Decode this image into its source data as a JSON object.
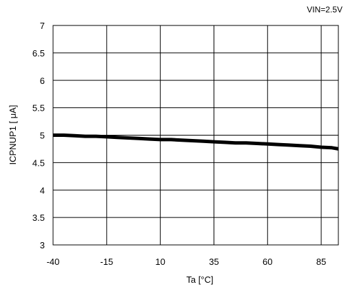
{
  "chart_data": {
    "type": "line",
    "annotation": "VIN=2.5V",
    "xlabel": "Ta [°C]",
    "ylabel": "ICPNUP1 [  μA]",
    "xlim": [
      -40,
      93
    ],
    "ylim": [
      3,
      7
    ],
    "xticks": [
      -40,
      -15,
      10,
      35,
      60,
      85
    ],
    "xtick_labels": [
      "-40",
      "-15",
      "10",
      "35",
      "60",
      "85"
    ],
    "yticks": [
      3,
      3.5,
      4,
      4.5,
      5,
      5.5,
      6,
      6.5,
      7
    ],
    "ytick_labels": [
      "3",
      "3.5",
      "4",
      "4.5",
      "5",
      "5.5",
      "6",
      "6.5",
      "7"
    ],
    "grid": true,
    "series": [
      {
        "color": "#000000",
        "x": [
          -40,
          -35,
          -30,
          -25,
          -20,
          -15,
          -10,
          -5,
          0,
          5,
          10,
          15,
          20,
          25,
          30,
          35,
          40,
          45,
          50,
          55,
          60,
          65,
          70,
          75,
          80,
          85,
          90,
          93
        ],
        "y": [
          5.0,
          5.0,
          4.99,
          4.98,
          4.98,
          4.97,
          4.96,
          4.95,
          4.94,
          4.93,
          4.92,
          4.92,
          4.91,
          4.9,
          4.89,
          4.88,
          4.87,
          4.86,
          4.86,
          4.85,
          4.84,
          4.83,
          4.82,
          4.81,
          4.8,
          4.78,
          4.77,
          4.75
        ]
      }
    ]
  }
}
